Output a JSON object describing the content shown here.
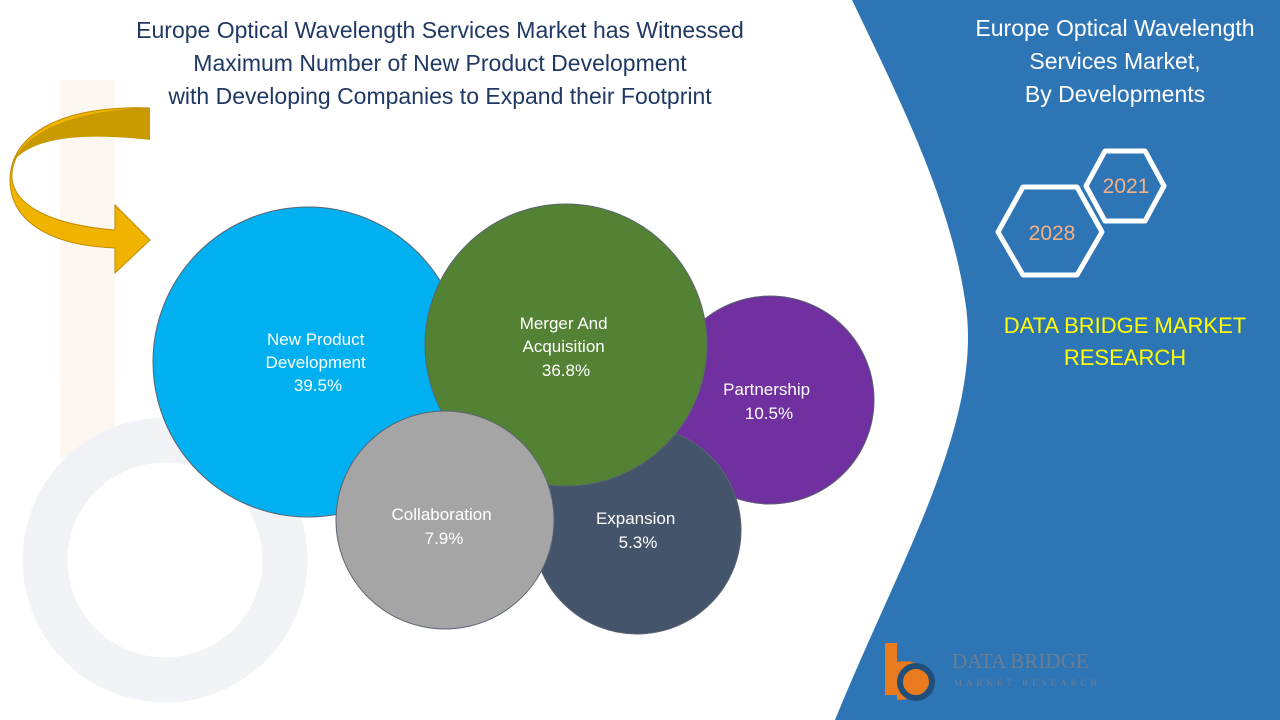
{
  "title": {
    "lines": [
      "Europe Optical Wavelength Services Market has Witnessed",
      "Maximum Number of New Product Development",
      "with Developing Companies to Expand their Footprint"
    ]
  },
  "side_panel": {
    "title_lines": [
      "Europe Optical Wavelength",
      "Services Market,",
      "By Developments"
    ],
    "years": [
      "2021",
      "2028"
    ],
    "brand_lines": [
      "DATA BRIDGE MARKET",
      "RESEARCH"
    ],
    "logo": {
      "name": "DATA BRIDGE",
      "tagline": "MARKET RESEARCH"
    },
    "panel_color": "#2e75b6",
    "brand_color": "#ffff00",
    "year_color": "#f4b183"
  },
  "chart_data": {
    "type": "bubble",
    "title": "",
    "series": [
      {
        "label_lines": [
          "New Product",
          "Development"
        ],
        "value": 39.5,
        "display": "39.5%",
        "color": "#00b0f0"
      },
      {
        "label_lines": [
          "Merger And",
          "Acquisition"
        ],
        "value": 36.8,
        "display": "36.8%",
        "color": "#548235"
      },
      {
        "label_lines": [
          "Partnership"
        ],
        "value": 10.5,
        "display": "10.5%",
        "color": "#7030a0"
      },
      {
        "label_lines": [
          "Expansion"
        ],
        "value": 5.3,
        "display": "5.3%",
        "color": "#44546a"
      },
      {
        "label_lines": [
          "Collaboration"
        ],
        "value": 7.9,
        "display": "7.9%",
        "color": "#a5a5a5"
      }
    ]
  }
}
